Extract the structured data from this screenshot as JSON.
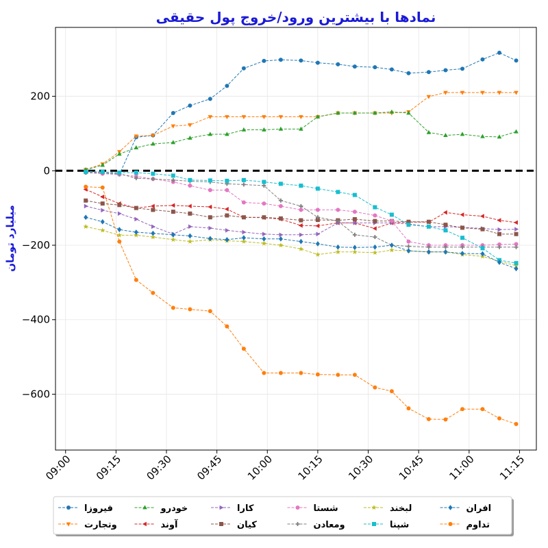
{
  "chart_data": {
    "type": "line",
    "title": "نمادها با بیشترین ورود/خروج پول حقیقی",
    "xlabel": "",
    "ylabel": "میلیارد تومان",
    "xlim": [
      "08:57",
      "11:20"
    ],
    "ylim": [
      -750,
      385
    ],
    "x_ticks": [
      "09:00",
      "09:15",
      "09:30",
      "09:45",
      "10:00",
      "10:15",
      "10:30",
      "10:45",
      "11:00",
      "11:15"
    ],
    "y_ticks": [
      -600,
      -400,
      -200,
      0,
      200
    ],
    "y_tick_labels": [
      "−600",
      "−400",
      "−200",
      "0",
      "200"
    ],
    "grid": true,
    "reference_line": {
      "y": 0,
      "style": "dashed",
      "color": "#000000"
    },
    "legend": {
      "placement": "bottom-center",
      "columns": 6
    },
    "x": [
      "09:06",
      "09:11",
      "09:16",
      "09:21",
      "09:26",
      "09:32",
      "09:37",
      "09:43",
      "09:48",
      "09:53",
      "09:59",
      "10:04",
      "10:10",
      "10:15",
      "10:21",
      "10:26",
      "10:32",
      "10:37",
      "10:42",
      "10:48",
      "10:53",
      "10:58",
      "11:04",
      "11:09",
      "11:14"
    ],
    "series": [
      {
        "name": "فیروزا",
        "color": "#1f77b4",
        "marker": "circle",
        "values": [
          0,
          -5,
          -10,
          90,
          95,
          155,
          175,
          193,
          228,
          275,
          295,
          298,
          296,
          290,
          286,
          280,
          278,
          272,
          262,
          265,
          270,
          274,
          299,
          317,
          296
        ]
      },
      {
        "name": "وتجارت",
        "color": "#ff7f0e",
        "marker": "triangle-down",
        "values": [
          3,
          18,
          51,
          93,
          95,
          120,
          123,
          145,
          145,
          145,
          145,
          145,
          145,
          145,
          155,
          155,
          155,
          155,
          158,
          199,
          210,
          210,
          210,
          210,
          210
        ]
      },
      {
        "name": "خودرو",
        "color": "#2ca02c",
        "marker": "triangle-up",
        "values": [
          3,
          15,
          45,
          62,
          72,
          76,
          88,
          98,
          98,
          110,
          110,
          112,
          112,
          145,
          155,
          155,
          155,
          158,
          155,
          103,
          95,
          98,
          92,
          91,
          105
        ]
      },
      {
        "name": "آوند",
        "color": "#d62728",
        "marker": "triangle-left",
        "values": [
          -50,
          -70,
          -88,
          -100,
          -95,
          -93,
          -95,
          -97,
          -103,
          -125,
          -126,
          -130,
          -147,
          -148,
          -140,
          -140,
          -155,
          -140,
          -138,
          -138,
          -112,
          -118,
          -122,
          -133,
          -139
        ]
      },
      {
        "name": "کارا",
        "color": "#9467bd",
        "marker": "triangle-right",
        "values": [
          -95,
          -106,
          -115,
          -130,
          -150,
          -170,
          -150,
          -154,
          -160,
          -165,
          -170,
          -172,
          -172,
          -170,
          -140,
          -140,
          -140,
          -140,
          -143,
          -150,
          -150,
          -152,
          -155,
          -158,
          -157
        ]
      },
      {
        "name": "کیان",
        "color": "#8c564b",
        "marker": "square",
        "values": [
          -80,
          -88,
          -92,
          -100,
          -105,
          -110,
          -115,
          -125,
          -120,
          -125,
          -125,
          -128,
          -133,
          -132,
          -133,
          -130,
          -135,
          -135,
          -137,
          -137,
          -145,
          -153,
          -157,
          -170,
          -170
        ]
      },
      {
        "name": "شستا",
        "color": "#e377c2",
        "marker": "circle",
        "values": [
          -5,
          -8,
          -10,
          -15,
          -22,
          -30,
          -40,
          -52,
          -52,
          -85,
          -88,
          -95,
          -105,
          -105,
          -105,
          -110,
          -120,
          -135,
          -190,
          -200,
          -200,
          -200,
          -200,
          -198,
          -197
        ]
      },
      {
        "name": "ومعادن",
        "color": "#7f7f7f",
        "marker": "plus",
        "values": [
          -5,
          -5,
          -8,
          -20,
          -22,
          -25,
          -28,
          -30,
          -35,
          -37,
          -40,
          -80,
          -95,
          -125,
          -135,
          -172,
          -178,
          -200,
          -203,
          -205,
          -205,
          -205,
          -205,
          -205,
          -205
        ]
      },
      {
        "name": "لبخند",
        "color": "#bcbd22",
        "marker": "star",
        "values": [
          -150,
          -160,
          -173,
          -173,
          -178,
          -185,
          -190,
          -185,
          -188,
          -190,
          -195,
          -200,
          -210,
          -225,
          -218,
          -218,
          -220,
          -213,
          -215,
          -218,
          -218,
          -225,
          -230,
          -243,
          -255
        ]
      },
      {
        "name": "شپنا",
        "color": "#17becf",
        "marker": "square",
        "values": [
          -3,
          -3,
          -5,
          -5,
          -8,
          -13,
          -25,
          -26,
          -27,
          -25,
          -30,
          -35,
          -40,
          -48,
          -57,
          -65,
          -98,
          -118,
          -145,
          -150,
          -160,
          -180,
          -208,
          -240,
          -248
        ]
      },
      {
        "name": "افران",
        "color": "#1f77b4",
        "marker": "diamond",
        "values": [
          -125,
          -137,
          -158,
          -165,
          -168,
          -172,
          -175,
          -182,
          -185,
          -180,
          -183,
          -183,
          -190,
          -196,
          -205,
          -206,
          -205,
          -200,
          -215,
          -218,
          -218,
          -222,
          -223,
          -246,
          -263
        ]
      },
      {
        "name": "تداوم",
        "color": "#ff7f0e",
        "marker": "circle",
        "values": [
          -43,
          -45,
          -190,
          -293,
          -328,
          -368,
          -372,
          -377,
          -418,
          -478,
          -543,
          -543,
          -543,
          -547,
          -548,
          -548,
          -582,
          -592,
          -638,
          -667,
          -668,
          -640,
          -640,
          -665,
          -680
        ]
      }
    ]
  }
}
